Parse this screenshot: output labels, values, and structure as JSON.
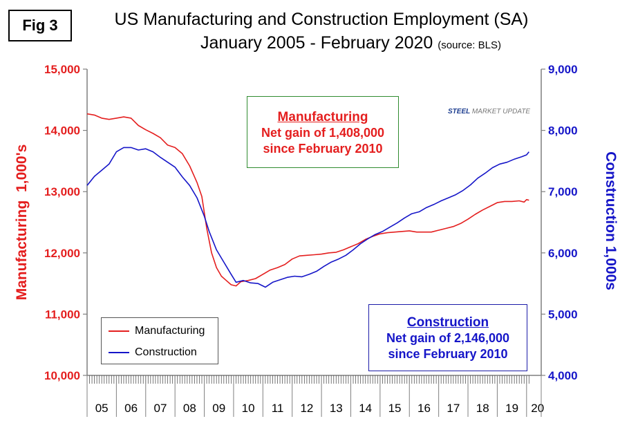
{
  "figure": {
    "badge": "Fig 3",
    "title_line1": "US Manufacturing and Construction Employment (SA)",
    "title_line2": "January 2005 - February 2020",
    "source_note": "(source: BLS)",
    "logo_part1": "STEEL",
    "logo_part2": "MARKET UPDATE"
  },
  "annotations": {
    "manufacturing": {
      "heading": "Manufacturing",
      "line1": "Net gain of 1,408,000",
      "line2": "since February 2010"
    },
    "construction": {
      "heading": "Construction",
      "line1": "Net gain of 2,146,000",
      "line2": "since February 2010"
    }
  },
  "colors": {
    "manufacturing": "#e41e1e",
    "construction": "#1515c8",
    "axis": "#7f7f7f"
  },
  "chart_data": {
    "type": "line",
    "x_start": "2005-01",
    "x_end": "2020-02",
    "x_tick_labels": [
      "05",
      "06",
      "07",
      "08",
      "09",
      "10",
      "11",
      "12",
      "13",
      "14",
      "15",
      "16",
      "17",
      "18",
      "19",
      "20"
    ],
    "left_axis": {
      "label": "Manufacturing  1,000's",
      "ylim": [
        10000,
        15000
      ],
      "ticks": [
        "10,000",
        "11,000",
        "12,000",
        "13,000",
        "14,000",
        "15,000"
      ]
    },
    "right_axis": {
      "label": "Construction 1,000s",
      "ylim": [
        4000,
        9000
      ],
      "ticks": [
        "4,000",
        "5,000",
        "6,000",
        "7,000",
        "8,000",
        "9,000"
      ]
    },
    "legend": [
      "Manufacturing",
      "Construction"
    ],
    "legend_position": "bottom-left",
    "series": [
      {
        "name": "Manufacturing",
        "axis": "left",
        "color": "#e41e1e",
        "points": [
          [
            "2005-01",
            14270
          ],
          [
            "2005-04",
            14250
          ],
          [
            "2005-07",
            14200
          ],
          [
            "2005-10",
            14180
          ],
          [
            "2006-01",
            14200
          ],
          [
            "2006-04",
            14220
          ],
          [
            "2006-07",
            14200
          ],
          [
            "2006-10",
            14080
          ],
          [
            "2007-01",
            14010
          ],
          [
            "2007-04",
            13950
          ],
          [
            "2007-07",
            13880
          ],
          [
            "2007-10",
            13760
          ],
          [
            "2008-01",
            13720
          ],
          [
            "2008-04",
            13620
          ],
          [
            "2008-07",
            13420
          ],
          [
            "2008-10",
            13150
          ],
          [
            "2008-12",
            12920
          ],
          [
            "2009-02",
            12400
          ],
          [
            "2009-04",
            12000
          ],
          [
            "2009-06",
            11760
          ],
          [
            "2009-08",
            11620
          ],
          [
            "2009-10",
            11550
          ],
          [
            "2009-12",
            11480
          ],
          [
            "2010-02",
            11460
          ],
          [
            "2010-04",
            11530
          ],
          [
            "2010-07",
            11550
          ],
          [
            "2010-10",
            11580
          ],
          [
            "2011-01",
            11650
          ],
          [
            "2011-04",
            11720
          ],
          [
            "2011-07",
            11760
          ],
          [
            "2011-10",
            11810
          ],
          [
            "2012-01",
            11900
          ],
          [
            "2012-04",
            11950
          ],
          [
            "2012-07",
            11960
          ],
          [
            "2012-10",
            11970
          ],
          [
            "2013-01",
            11980
          ],
          [
            "2013-04",
            12000
          ],
          [
            "2013-07",
            12010
          ],
          [
            "2013-10",
            12050
          ],
          [
            "2014-01",
            12100
          ],
          [
            "2014-04",
            12150
          ],
          [
            "2014-07",
            12220
          ],
          [
            "2014-10",
            12270
          ],
          [
            "2015-01",
            12310
          ],
          [
            "2015-04",
            12330
          ],
          [
            "2015-07",
            12340
          ],
          [
            "2015-10",
            12350
          ],
          [
            "2016-01",
            12360
          ],
          [
            "2016-04",
            12340
          ],
          [
            "2016-07",
            12340
          ],
          [
            "2016-10",
            12340
          ],
          [
            "2017-01",
            12370
          ],
          [
            "2017-04",
            12400
          ],
          [
            "2017-07",
            12430
          ],
          [
            "2017-10",
            12480
          ],
          [
            "2018-01",
            12550
          ],
          [
            "2018-04",
            12630
          ],
          [
            "2018-07",
            12700
          ],
          [
            "2018-10",
            12760
          ],
          [
            "2019-01",
            12820
          ],
          [
            "2019-04",
            12840
          ],
          [
            "2019-07",
            12840
          ],
          [
            "2019-10",
            12850
          ],
          [
            "2019-12",
            12830
          ],
          [
            "2020-01",
            12870
          ],
          [
            "2020-02",
            12860
          ]
        ]
      },
      {
        "name": "Construction",
        "axis": "right",
        "color": "#1515c8",
        "points": [
          [
            "2005-01",
            7100
          ],
          [
            "2005-04",
            7250
          ],
          [
            "2005-07",
            7350
          ],
          [
            "2005-10",
            7450
          ],
          [
            "2006-01",
            7650
          ],
          [
            "2006-04",
            7720
          ],
          [
            "2006-07",
            7720
          ],
          [
            "2006-10",
            7680
          ],
          [
            "2007-01",
            7700
          ],
          [
            "2007-04",
            7650
          ],
          [
            "2007-07",
            7560
          ],
          [
            "2007-10",
            7480
          ],
          [
            "2008-01",
            7400
          ],
          [
            "2008-04",
            7240
          ],
          [
            "2008-07",
            7100
          ],
          [
            "2008-10",
            6900
          ],
          [
            "2009-01",
            6600
          ],
          [
            "2009-03",
            6350
          ],
          [
            "2009-06",
            6050
          ],
          [
            "2009-09",
            5850
          ],
          [
            "2009-12",
            5650
          ],
          [
            "2010-02",
            5520
          ],
          [
            "2010-05",
            5550
          ],
          [
            "2010-08",
            5510
          ],
          [
            "2010-11",
            5500
          ],
          [
            "2011-02",
            5440
          ],
          [
            "2011-05",
            5520
          ],
          [
            "2011-08",
            5560
          ],
          [
            "2011-11",
            5600
          ],
          [
            "2012-02",
            5620
          ],
          [
            "2012-05",
            5610
          ],
          [
            "2012-08",
            5650
          ],
          [
            "2012-11",
            5700
          ],
          [
            "2013-02",
            5780
          ],
          [
            "2013-05",
            5850
          ],
          [
            "2013-08",
            5900
          ],
          [
            "2013-11",
            5960
          ],
          [
            "2014-02",
            6050
          ],
          [
            "2014-05",
            6150
          ],
          [
            "2014-08",
            6230
          ],
          [
            "2014-11",
            6300
          ],
          [
            "2015-02",
            6350
          ],
          [
            "2015-05",
            6420
          ],
          [
            "2015-08",
            6490
          ],
          [
            "2015-11",
            6570
          ],
          [
            "2016-02",
            6640
          ],
          [
            "2016-05",
            6670
          ],
          [
            "2016-08",
            6740
          ],
          [
            "2016-11",
            6790
          ],
          [
            "2017-02",
            6850
          ],
          [
            "2017-05",
            6900
          ],
          [
            "2017-08",
            6950
          ],
          [
            "2017-11",
            7020
          ],
          [
            "2018-02",
            7110
          ],
          [
            "2018-05",
            7220
          ],
          [
            "2018-08",
            7300
          ],
          [
            "2018-11",
            7390
          ],
          [
            "2019-02",
            7450
          ],
          [
            "2019-05",
            7480
          ],
          [
            "2019-08",
            7530
          ],
          [
            "2019-11",
            7570
          ],
          [
            "2020-01",
            7600
          ],
          [
            "2020-02",
            7650
          ]
        ]
      }
    ]
  }
}
